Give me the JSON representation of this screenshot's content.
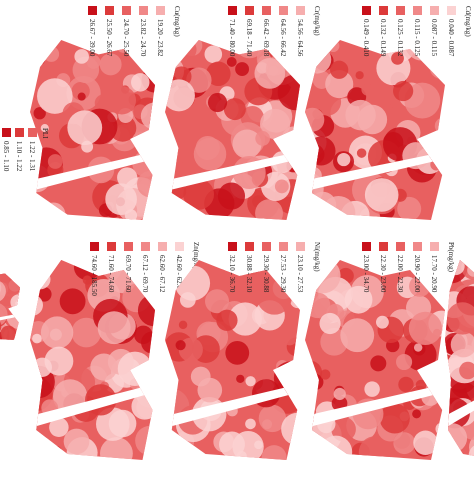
{
  "pli": {
    "title": "PLI",
    "legend": [
      "0.85 - 1.10",
      "1.10 - 1.22",
      "1.22 - 1.31"
    ]
  },
  "panels": [
    {
      "title": "Cu(mg/kg)",
      "legend": [
        "26.67 - 39.00",
        "25.50 - 26.67",
        "24.70 - 25.50",
        "23.82 - 24.70",
        "19.20 - 23.82"
      ]
    },
    {
      "title": "Cr(mg/kg)",
      "legend": [
        "71.40 - 80.00",
        "69.18 - 71.40",
        "66.42 - 69.18",
        "64.56 - 66.42",
        "54.56 - 64.56"
      ]
    },
    {
      "title": "Cd(mg/kg)",
      "legend": [
        "0.149 - 0.410",
        "0.132 - 0.149",
        "0.125 - 0.132",
        "0.115 - 0.125",
        "0.087 - 0.115",
        "0.040 - 0.087"
      ]
    },
    {
      "title": "Zn(mg/kg)",
      "legend": [
        "74.60 - 185.50",
        "71.60 - 74.60",
        "69.70 - 71.60",
        "67.12 - 69.70",
        "62.60 - 67.12",
        "42.60 - 62.60"
      ]
    },
    {
      "title": "Ni(mg/kg)",
      "legend": [
        "32.10 - 36.70",
        "30.88 - 32.10",
        "29.30 - 30.88",
        "27.53 - 29.30",
        "23.10 - 27.53"
      ]
    },
    {
      "title": "Pb(mg/kg)",
      "legend": [
        "23.00 - 34.70",
        "22.30 - 23.00",
        "22.00 - 22.30",
        "20.90 - 22.00",
        "17.70 - 20.90"
      ]
    }
  ]
}
